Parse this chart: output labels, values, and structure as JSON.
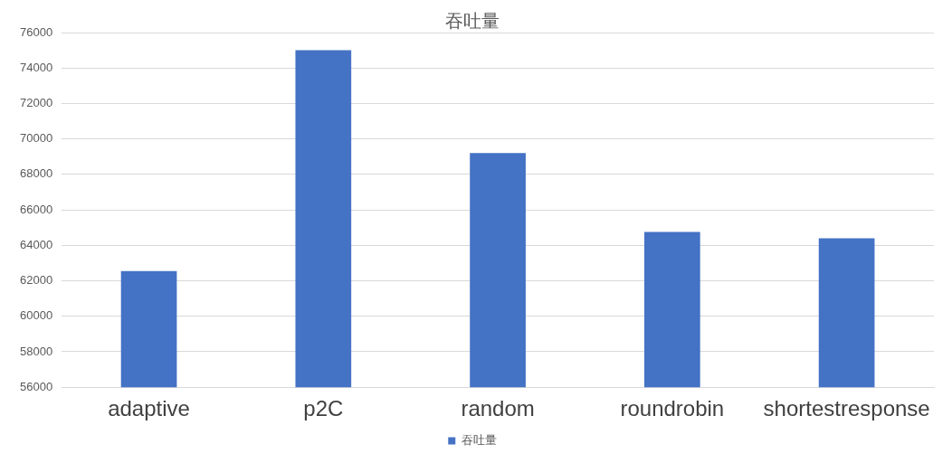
{
  "chart_data": {
    "type": "bar",
    "title": "吞吐量",
    "categories": [
      "adaptive",
      "p2C",
      "random",
      "roundrobin",
      "shortestresponse"
    ],
    "series": [
      {
        "name": "吞吐量",
        "color": "#4472c4",
        "values": [
          62550,
          75000,
          69200,
          64750,
          64400
        ]
      }
    ],
    "ylim": [
      56000,
      76000
    ],
    "yticks": [
      56000,
      58000,
      60000,
      62000,
      64000,
      66000,
      68000,
      70000,
      72000,
      74000,
      76000
    ],
    "grid": "y",
    "legend": "bottom"
  }
}
